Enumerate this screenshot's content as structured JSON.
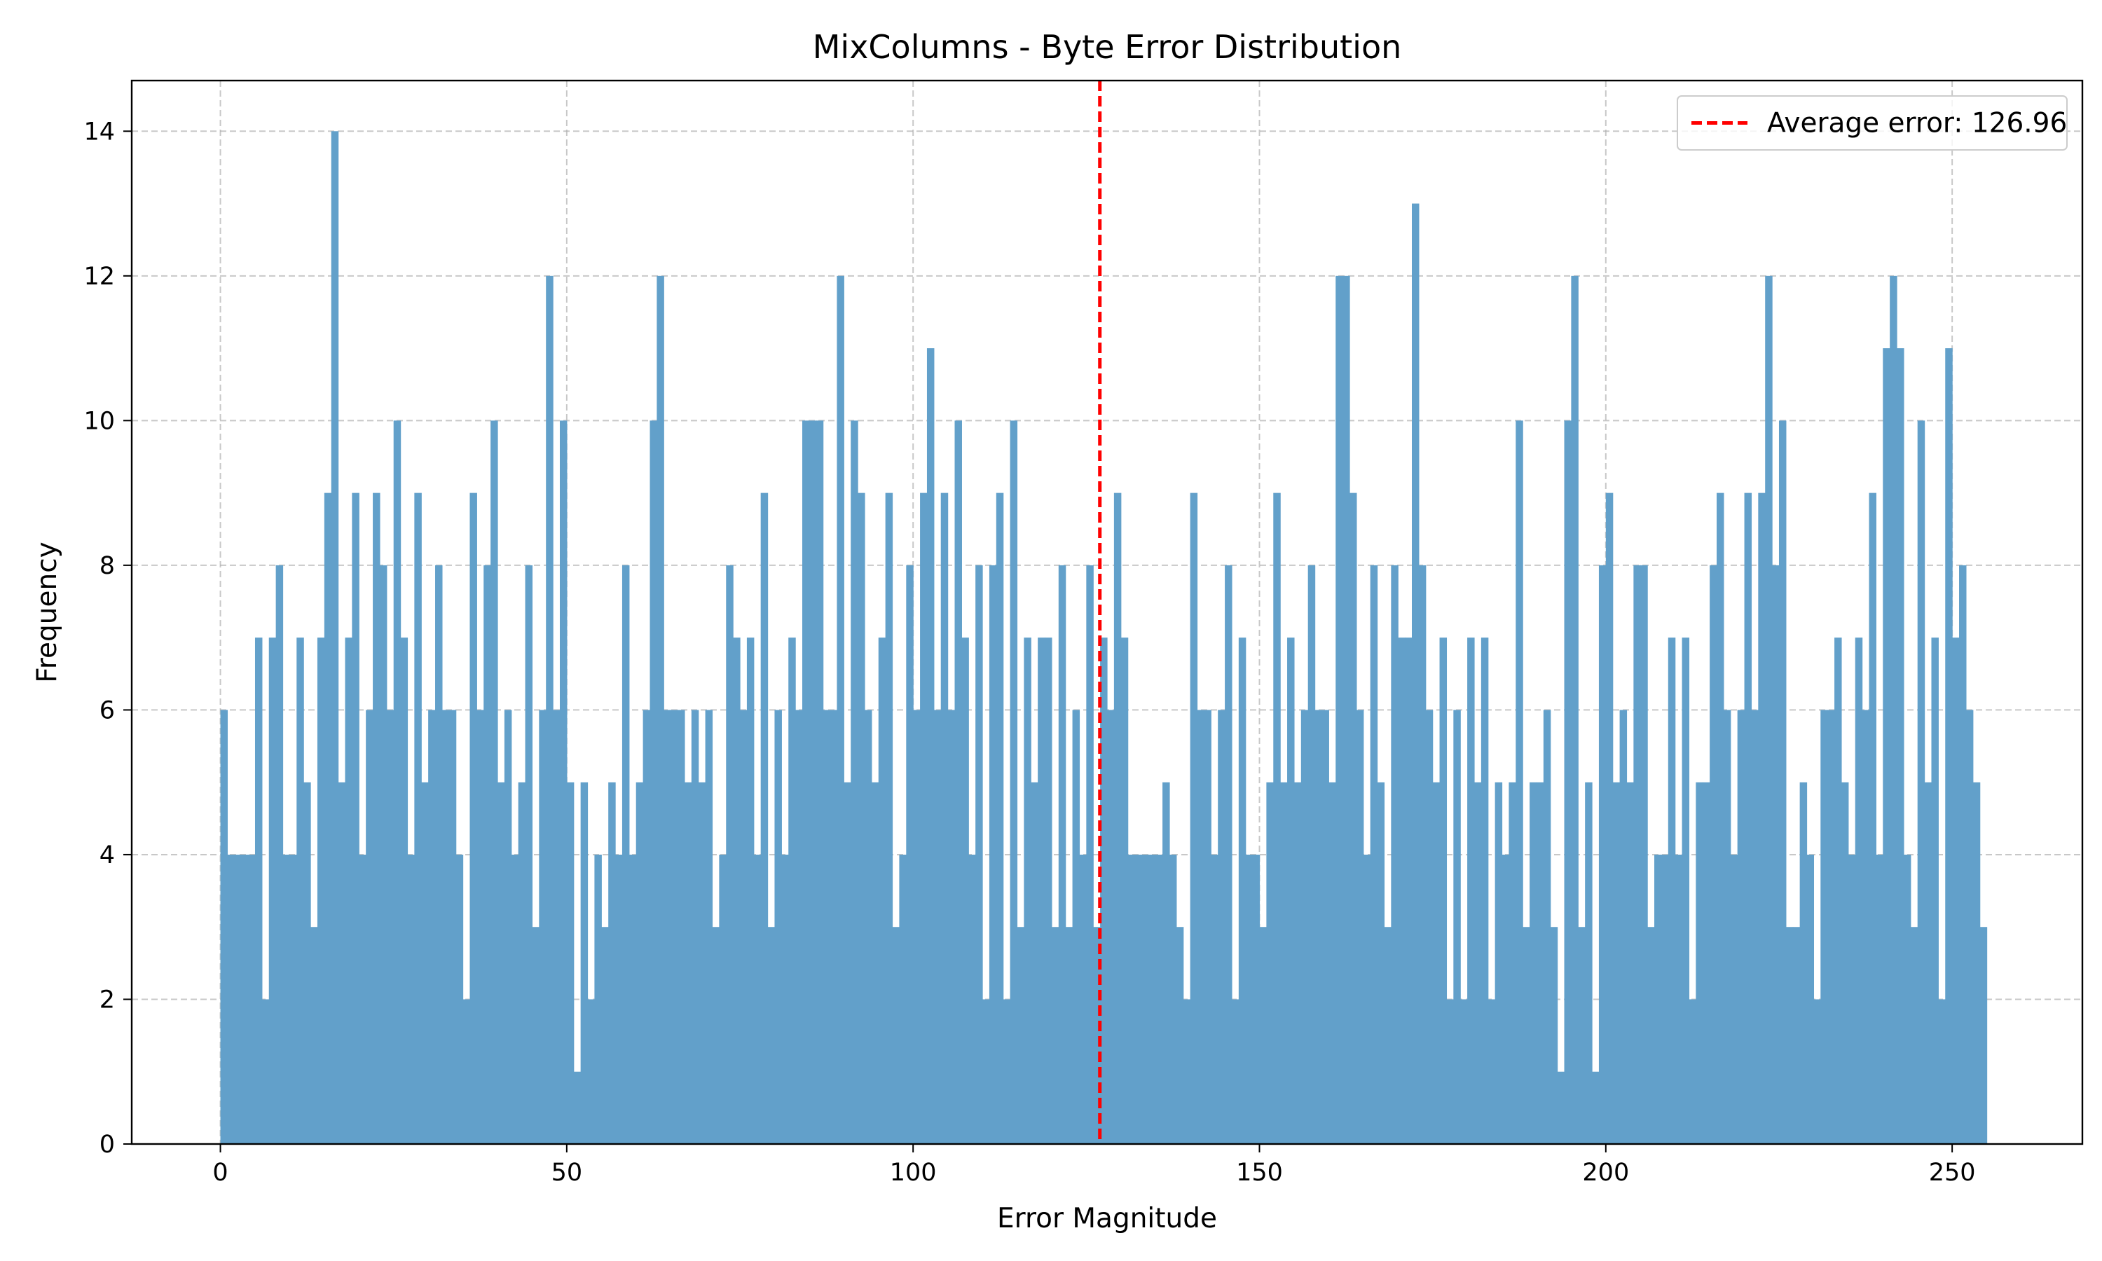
{
  "chart_data": {
    "type": "bar",
    "title": "MixColumns - Byte Error Distribution",
    "xlabel": "Error Magnitude",
    "ylabel": "Frequency",
    "xlim": [
      -12.8,
      268.8
    ],
    "ylim": [
      0,
      14.7
    ],
    "xticks": [
      0,
      50,
      100,
      150,
      200,
      250
    ],
    "yticks": [
      0,
      2,
      4,
      6,
      8,
      10,
      12,
      14
    ],
    "grid": true,
    "bar_color": "#62a0ca",
    "bins_start": 0,
    "bin_width": 1,
    "values": [
      6,
      4,
      4,
      4,
      4,
      7,
      2,
      7,
      8,
      4,
      4,
      7,
      5,
      3,
      7,
      9,
      14,
      5,
      7,
      9,
      4,
      6,
      9,
      8,
      6,
      10,
      7,
      4,
      9,
      5,
      6,
      8,
      6,
      6,
      4,
      2,
      9,
      6,
      8,
      10,
      5,
      6,
      4,
      5,
      8,
      3,
      6,
      12,
      6,
      10,
      5,
      1,
      5,
      2,
      4,
      3,
      5,
      4,
      8,
      4,
      5,
      6,
      10,
      12,
      6,
      6,
      6,
      5,
      6,
      5,
      6,
      3,
      4,
      8,
      7,
      6,
      7,
      4,
      9,
      3,
      6,
      4,
      7,
      6,
      10,
      10,
      10,
      6,
      6,
      12,
      5,
      10,
      9,
      6,
      5,
      7,
      9,
      3,
      4,
      8,
      6,
      9,
      11,
      6,
      9,
      6,
      10,
      7,
      4,
      8,
      2,
      8,
      9,
      2,
      10,
      3,
      7,
      5,
      7,
      7,
      3,
      8,
      3,
      6,
      4,
      8,
      3,
      7,
      6,
      9,
      7,
      4,
      4,
      4,
      4,
      4,
      5,
      4,
      3,
      2,
      9,
      6,
      6,
      4,
      6,
      8,
      2,
      7,
      4,
      4,
      3,
      5,
      9,
      5,
      7,
      5,
      6,
      8,
      6,
      6,
      5,
      12,
      12,
      9,
      6,
      4,
      8,
      5,
      3,
      8,
      7,
      7,
      13,
      8,
      6,
      5,
      7,
      2,
      6,
      2,
      7,
      5,
      7,
      2,
      5,
      4,
      5,
      10,
      3,
      5,
      5,
      6,
      3,
      1,
      10,
      12,
      3,
      5,
      1,
      8,
      9,
      5,
      6,
      5,
      8,
      8,
      3,
      4,
      4,
      7,
      4,
      7,
      2,
      5,
      5,
      8,
      9,
      6,
      4,
      6,
      9,
      6,
      9,
      12,
      8,
      10,
      3,
      3,
      5,
      4,
      2,
      6,
      6,
      7,
      5,
      4,
      7,
      6,
      9,
      4,
      11,
      12,
      11,
      4,
      3,
      10,
      5,
      7,
      2,
      11,
      7,
      8,
      6,
      5,
      3
    ]
  },
  "legend": {
    "label": "Average error: 126.96",
    "position": "upper right",
    "line_color": "#ff0000"
  },
  "mean_line": {
    "value": 126.96,
    "color": "#ff0000"
  },
  "grid_color": "#b0b0b0"
}
